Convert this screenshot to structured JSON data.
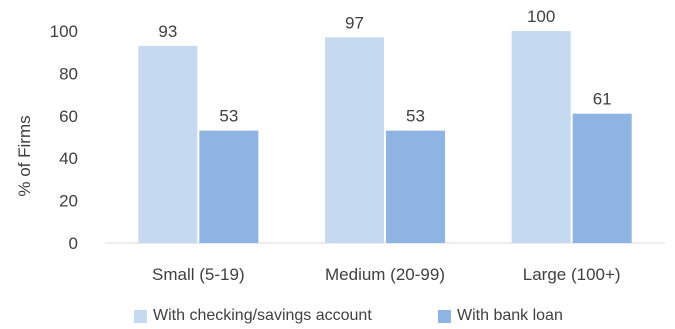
{
  "chart_data": {
    "type": "bar",
    "categories": [
      "Small (5-19)",
      "Medium (20-99)",
      "Large (100+)"
    ],
    "series": [
      {
        "name": "With checking/savings account",
        "values": [
          93,
          97,
          100
        ],
        "color": "#c5d9f1"
      },
      {
        "name": "With bank loan",
        "values": [
          53,
          53,
          61
        ],
        "color": "#8db4e2"
      }
    ],
    "ylabel": "% of Firms",
    "xlabel": "",
    "ylim": [
      0,
      100
    ],
    "yticks": [
      0,
      20,
      40,
      60,
      80,
      100
    ],
    "grid": false,
    "legend": "bottom"
  }
}
